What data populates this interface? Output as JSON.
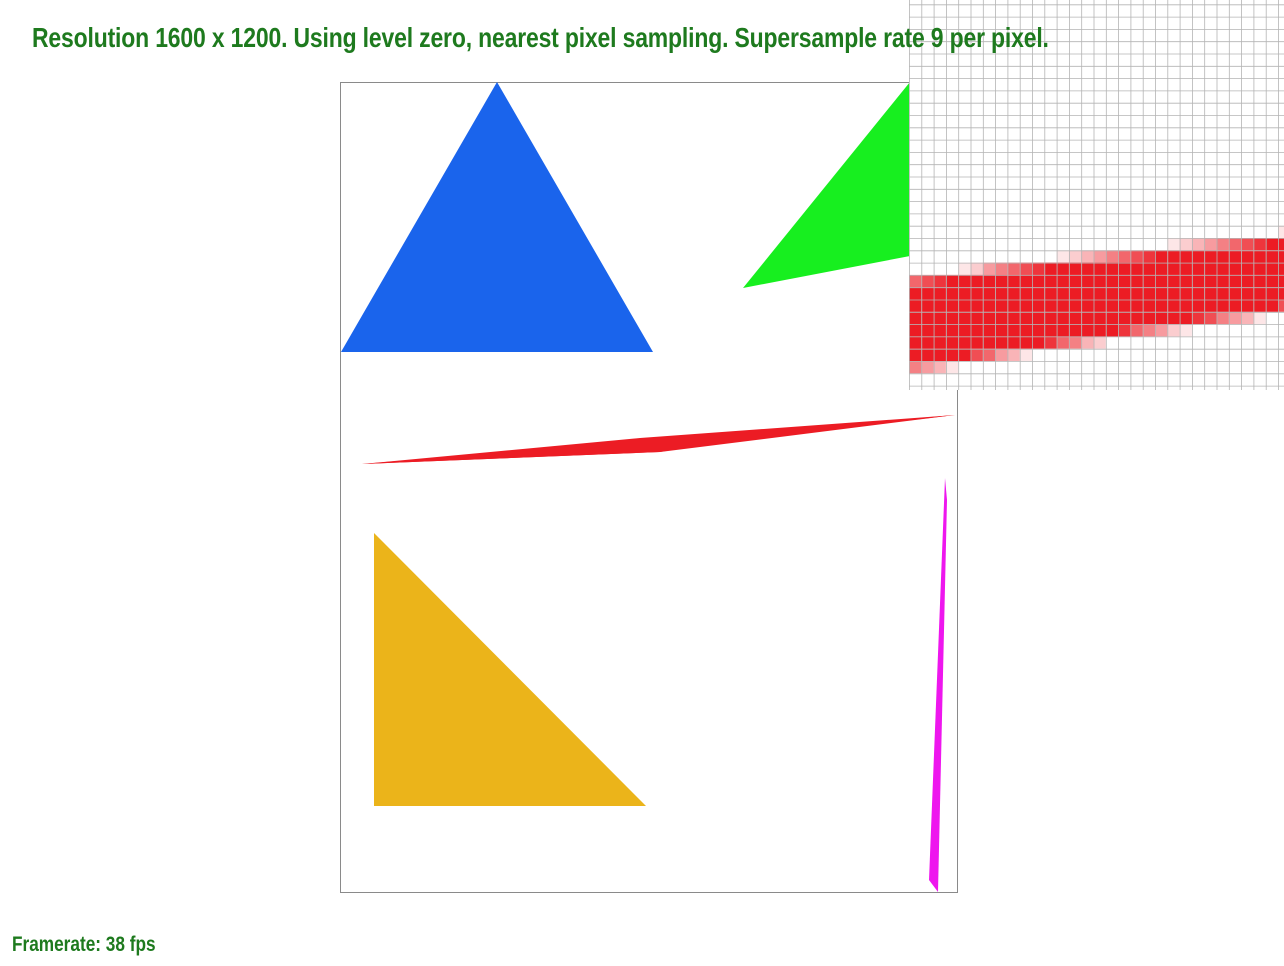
{
  "header": {
    "text": "Resolution 1600 x 1200. Using level zero, nearest pixel sampling. Supersample rate 9 per pixel."
  },
  "footer": {
    "framerate_text": "Framerate: 38 fps"
  },
  "colors": {
    "status_text": "#1e7a1e",
    "blue_triangle": "#1a64ec",
    "green_triangle": "#17ef1f",
    "red_sliver": "#ec1c24",
    "gold_triangle": "#ebb41a",
    "magenta_sliver": "#ee16ee",
    "grid_line": "#b4b4b4",
    "frame_border": "#8a8a8a"
  },
  "zoom_overlay": {
    "description_icon": "pixel-inspector-grid"
  }
}
